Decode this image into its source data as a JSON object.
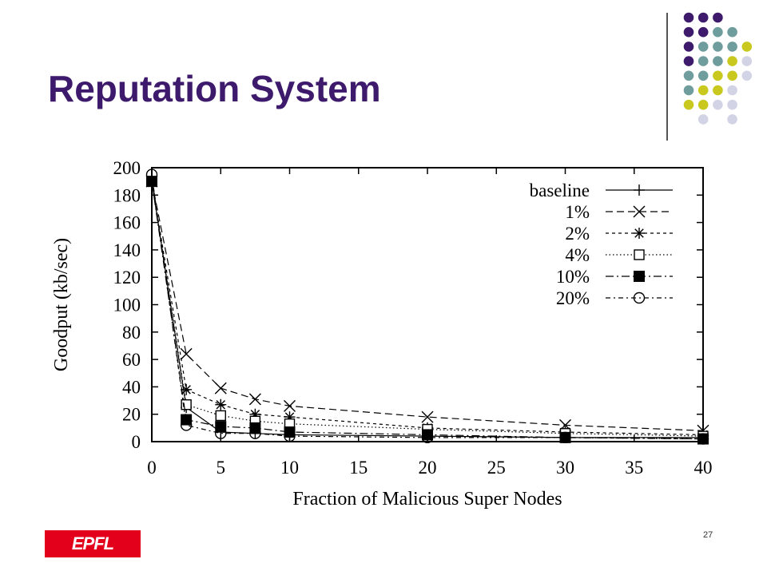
{
  "slide": {
    "title": "Reputation System",
    "page_number": "27",
    "logo_text": "EPFL",
    "accent_colors": {
      "title": "#3d1a6b",
      "dot_purple": "#3d1a6b",
      "dot_teal": "#6f9c9c",
      "dot_yellow": "#c8c81e",
      "dot_lavender": "#d3d3e6",
      "logo_red": "#e3001b"
    },
    "dot_grid": [
      [
        "purple",
        "purple",
        "purple",
        "",
        "",
        ""
      ],
      [
        "purple",
        "purple",
        "teal",
        "teal",
        "",
        ""
      ],
      [
        "purple",
        "teal",
        "teal",
        "teal",
        "yellow",
        ""
      ],
      [
        "purple",
        "teal",
        "teal",
        "yellow",
        "lavender",
        ""
      ],
      [
        "teal",
        "teal",
        "yellow",
        "yellow",
        "lavender",
        ""
      ],
      [
        "teal",
        "yellow",
        "yellow",
        "lavender",
        "",
        ""
      ],
      [
        "yellow",
        "yellow",
        "lavender",
        "lavender",
        "",
        ""
      ],
      [
        "",
        "lavender",
        "",
        "lavender",
        "",
        ""
      ]
    ]
  },
  "chart_data": {
    "type": "line",
    "title": "",
    "xlabel": "Fraction of Malicious Super Nodes",
    "ylabel": "Goodput (kb/sec)",
    "xlim": [
      0,
      40
    ],
    "ylim": [
      0,
      200
    ],
    "x_ticks": [
      "0",
      "5",
      "10",
      "15",
      "20",
      "25",
      "30",
      "35",
      "40"
    ],
    "y_ticks": [
      "0",
      "20",
      "40",
      "60",
      "80",
      "100",
      "120",
      "140",
      "160",
      "180",
      "200"
    ],
    "grid": false,
    "legend_position": "top-right",
    "series": [
      {
        "name": "baseline",
        "marker": "plus",
        "dash": "",
        "x": [
          0,
          2.5,
          5,
          7.5,
          10,
          20,
          30,
          40
        ],
        "y": [
          190,
          25,
          7,
          6,
          5,
          4,
          3,
          3
        ]
      },
      {
        "name": "1%",
        "marker": "x",
        "dash": "9,5",
        "x": [
          0,
          2.5,
          5,
          7.5,
          10,
          20,
          30,
          40
        ],
        "y": [
          190,
          64,
          39,
          31,
          26,
          18,
          12,
          8
        ]
      },
      {
        "name": "2%",
        "marker": "star",
        "dash": "4,4",
        "x": [
          0,
          2.5,
          5,
          7.5,
          10,
          20,
          30,
          40
        ],
        "y": [
          190,
          38,
          27,
          20,
          18,
          10,
          7,
          5
        ]
      },
      {
        "name": "4%",
        "marker": "square-open",
        "dash": "1.5,3",
        "x": [
          0,
          2.5,
          5,
          7.5,
          10,
          20,
          30,
          40
        ],
        "y": [
          190,
          27,
          19,
          15,
          13,
          9,
          6,
          4
        ]
      },
      {
        "name": "10%",
        "marker": "square-filled",
        "dash": "10,4,2,4",
        "x": [
          0,
          2.5,
          5,
          7.5,
          10,
          20,
          30,
          40
        ],
        "y": [
          190,
          16,
          11,
          10,
          7,
          5,
          3,
          2
        ]
      },
      {
        "name": "20%",
        "marker": "circle-open",
        "dash": "6,4,2,4",
        "x": [
          0,
          2.5,
          5,
          7.5,
          10,
          20,
          30,
          40
        ],
        "y": [
          195,
          12,
          6,
          6,
          4,
          3,
          3,
          2
        ]
      }
    ]
  }
}
